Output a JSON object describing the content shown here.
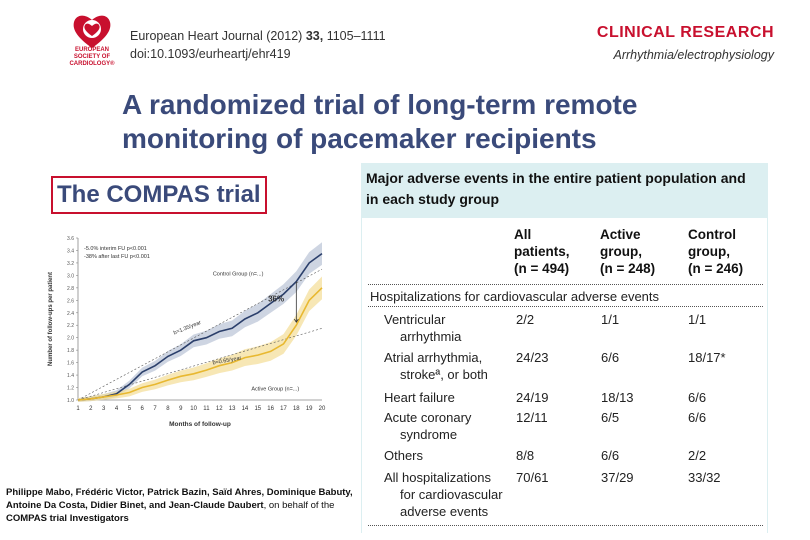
{
  "header": {
    "society_lines": [
      "EUROPEAN",
      "SOCIETY OF",
      "CARDIOLOGY®"
    ],
    "journal_name": "European Heart Journal (2012)",
    "volume": "33,",
    "pages": "1105–1111",
    "doi": "doi:10.1093/eurheartj/ehr419",
    "category": "CLINICAL RESEARCH",
    "subcategory": "Arrhythmia/electrophysiology"
  },
  "title": "A randomized trial of long-term remote monitoring of pacemaker recipients",
  "trial_name": "The COMPAS trial",
  "authors": {
    "names": "Philippe Mabo, Frédéric Victor, Patrick Bazin, Saïd Ahres, Dominique Babuty, Antoine Da Costa, Didier Binet, and Jean-Claude Daubert",
    "suffix": ", on behalf of the",
    "group": "COMPAS trial Investigators"
  },
  "chart_data": {
    "type": "line",
    "xlabel": "Months of follow-up",
    "ylabel": "Number of follow-ups per patient",
    "x": [
      1,
      2,
      3,
      4,
      5,
      6,
      7,
      8,
      9,
      10,
      11,
      12,
      13,
      14,
      15,
      16,
      17,
      18,
      19,
      20
    ],
    "xlim": [
      1,
      20
    ],
    "ylim": [
      1.0,
      3.6
    ],
    "yticks": [
      "1.0",
      "1.2",
      "1.4",
      "1.6",
      "1.8",
      "2.0",
      "2.2",
      "2.4",
      "2.6",
      "2.8",
      "3.0",
      "3.2",
      "3.4",
      "3.6"
    ],
    "annotations": [
      "-5.0% interim FU p<0.001",
      "-38% after last FU p<0.001",
      "36%",
      "b=1.35/year",
      "b=0.65/year"
    ],
    "series": [
      {
        "name": "Control Group (n=...)",
        "color": "#2b3f6b",
        "values": [
          1.0,
          1.02,
          1.05,
          1.1,
          1.25,
          1.45,
          1.55,
          1.7,
          1.8,
          1.95,
          2.0,
          2.1,
          2.15,
          2.3,
          2.4,
          2.55,
          2.7,
          2.9,
          3.2,
          3.35
        ]
      },
      {
        "name": "Active Group (n=...)",
        "color": "#e8b830",
        "values": [
          1.0,
          1.02,
          1.05,
          1.08,
          1.12,
          1.2,
          1.25,
          1.32,
          1.38,
          1.42,
          1.48,
          1.55,
          1.6,
          1.68,
          1.72,
          1.78,
          1.9,
          2.2,
          2.6,
          2.8
        ]
      }
    ]
  },
  "table": {
    "title": "Major adverse events in the entire patient population and in each study group",
    "columns": [
      {
        "line1": "All",
        "line2": "patients,",
        "line3": "(n = 494)"
      },
      {
        "line1": "Active",
        "line2": "group,",
        "line3": "(n = 248)"
      },
      {
        "line1": "Control",
        "line2": "group,",
        "line3": "(n = 246)"
      }
    ],
    "section": "Hospitalizations for cardiovascular adverse events",
    "rows": [
      {
        "label1": "Ventricular",
        "label2": "arrhythmia",
        "all": "2/2",
        "active": "1/1",
        "control": "1/1"
      },
      {
        "label1": "Atrial arrhythmia,",
        "label2": "strokeª, or both",
        "all": "24/23",
        "active": "6/6",
        "control": "18/17*"
      },
      {
        "label1": "Heart failure",
        "label2": "",
        "all": "24/19",
        "active": "18/13",
        "control": "6/6"
      },
      {
        "label1": "Acute coronary",
        "label2": "syndrome",
        "all": "12/11",
        "active": "6/5",
        "control": "6/6"
      },
      {
        "label1": "Others",
        "label2": "",
        "all": "8/8",
        "active": "6/6",
        "control": "2/2"
      },
      {
        "label1": "All hospitalizations",
        "label2": "for cardiovascular",
        "label3": "adverse events",
        "all": "70/61",
        "active": "37/29",
        "control": "33/32"
      }
    ]
  }
}
